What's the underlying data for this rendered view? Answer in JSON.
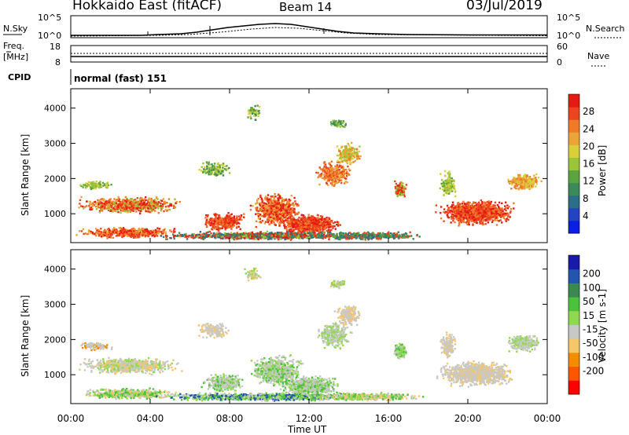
{
  "header": {
    "station": "Hokkaido East (fitACF)",
    "beam": "Beam 14",
    "date": "03/Jul/2019"
  },
  "noise_panel": {
    "left_label": "N.Sky",
    "right_label": "N.Search",
    "left_ticks": [
      "10^5",
      "10^0"
    ],
    "right_ticks": [
      "10^5",
      "10^0"
    ]
  },
  "freq_panel": {
    "left_label_top": "Freq.",
    "left_label_bottom": "[MHz]",
    "left_ticks": [
      "18",
      "8"
    ],
    "right_label": "Nave",
    "right_ticks": [
      "60",
      "0"
    ]
  },
  "cpid_panel": {
    "label": "CPID",
    "value": "normal (fast) 151"
  },
  "chart_data": [
    {
      "type": "heatmap",
      "name": "power-panel",
      "ylabel": "Slant Range [km]",
      "ylim": [
        180,
        4550
      ],
      "yticks": [
        "1000",
        "2000",
        "3000",
        "4000"
      ],
      "xlim": [
        0,
        24
      ],
      "xticks": [
        "00:00",
        "04:00",
        "08:00",
        "12:00",
        "16:00",
        "20:00",
        "00:00"
      ],
      "colorbar": {
        "label": "Power [dB]",
        "ticks": [
          "4",
          "8",
          "12",
          "16",
          "20",
          "24",
          "28"
        ],
        "range": [
          0,
          32
        ],
        "colors": [
          "#0a1ee6",
          "#2244c0",
          "#2a6e8a",
          "#3c8a5a",
          "#5aa540",
          "#9bc43a",
          "#d9cf3a",
          "#eba43a",
          "#ee7a2a",
          "#e9461f",
          "#e51a12"
        ]
      }
    },
    {
      "type": "heatmap",
      "name": "velocity-panel",
      "ylabel": "Slant Range [km]",
      "ylim": [
        180,
        4550
      ],
      "yticks": [
        "1000",
        "2000",
        "3000",
        "4000"
      ],
      "xlim": [
        0,
        24
      ],
      "xticks": [
        "00:00",
        "04:00",
        "08:00",
        "12:00",
        "16:00",
        "20:00",
        "00:00"
      ],
      "xlabel": "Time UT",
      "colorbar": {
        "label": "Velocity [m s-1]",
        "ticks": [
          "200",
          "100",
          "50",
          "15",
          "-15",
          "-50",
          "-100",
          "-200"
        ],
        "range": [
          -250,
          250
        ],
        "colors": [
          "#ff0000",
          "#ff5500",
          "#f28c00",
          "#f5c66a",
          "#c8c8c4",
          "#8fd94f",
          "#4cc23c",
          "#3a8a50",
          "#2255b0",
          "#1a1aa8"
        ]
      }
    }
  ]
}
